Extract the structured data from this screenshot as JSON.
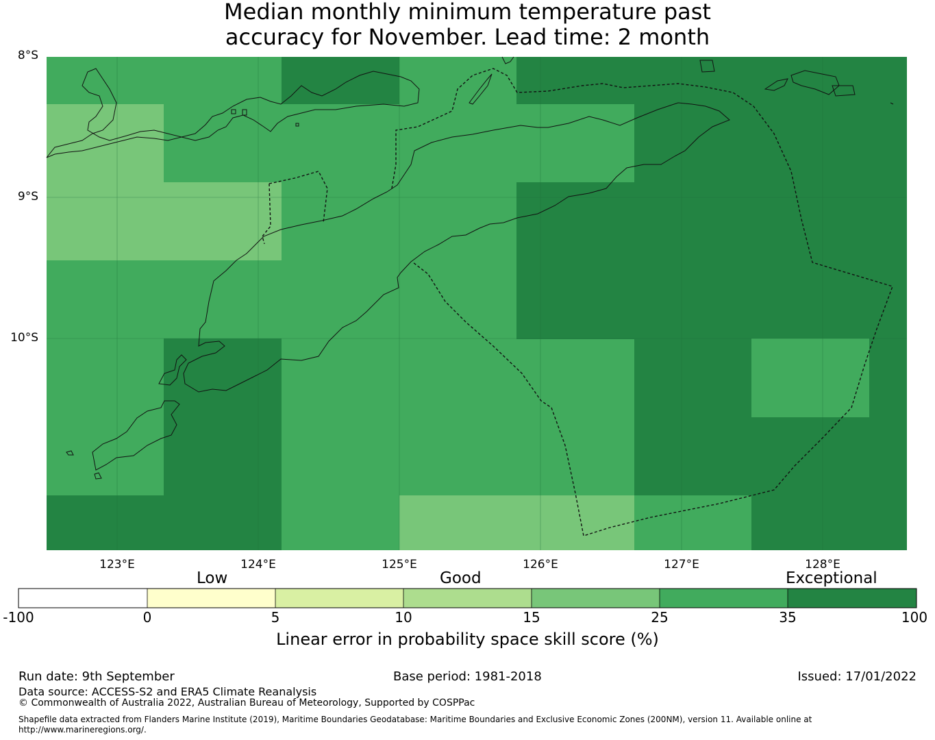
{
  "title": {
    "line1": "Median monthly minimum temperature past",
    "line2": "accuracy for November. Lead time: 2 month"
  },
  "map": {
    "lat_labels": [
      "8°S",
      "9°S",
      "10°S"
    ],
    "lon_labels": [
      "123°E",
      "124°E",
      "125°E",
      "126°E",
      "127°E",
      "128°E"
    ],
    "colors": {
      "c15_25": "#78c679",
      "c25_35": "#41ab5d",
      "c35_100": "#238443"
    }
  },
  "legend": {
    "categories": [
      "Low",
      "Good",
      "Exceptional"
    ],
    "ticks": [
      "-100",
      "0",
      "5",
      "10",
      "15",
      "25",
      "35",
      "100"
    ],
    "colors": [
      "#ffffff",
      "#ffffcc",
      "#d9f0a3",
      "#addd8e",
      "#78c679",
      "#41ab5d",
      "#238443"
    ],
    "label": "Linear error in probability space skill score (%)"
  },
  "footer": {
    "run_date": "Run date: 9th September",
    "base_period": "Base period: 1981-2018",
    "issued": "Issued: 17/01/2022",
    "data_source": "Data source: ACCESS-S2 and ERA5 Climate Reanalysis",
    "copyright": "© Commonwealth of Australia 2022, Australian Bureau of Meteorology, Supported by COSPPac",
    "shapefile": "Shapefile data extracted from Flanders Marine Institute (2019), Maritime Boundaries Geodatabase: Maritime Boundaries and Exclusive Economic Zones (200NM), version 11. Available online at http://www.marineregions.org/."
  }
}
